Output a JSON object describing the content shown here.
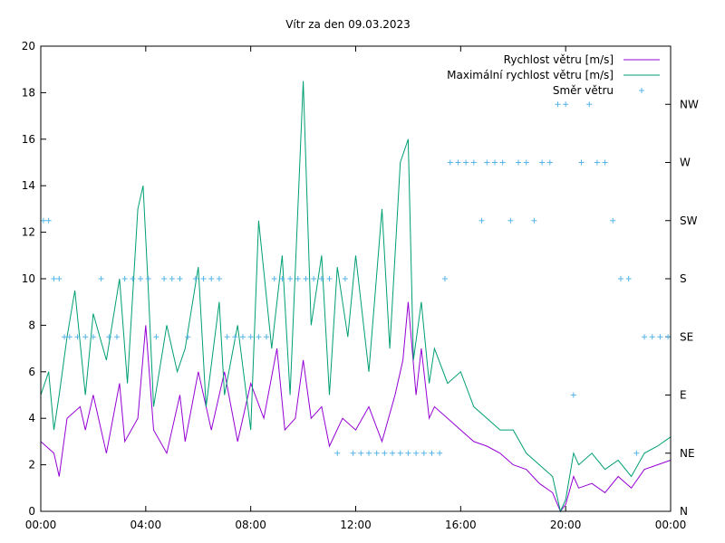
{
  "chart_data": {
    "type": "line",
    "title": "Vítr za den 09.03.2023",
    "xlabel": "",
    "ylabel": "",
    "x_range_hours": [
      0,
      24
    ],
    "ylim": [
      0,
      20
    ],
    "x_tick_labels": [
      "00:00",
      "04:00",
      "08:00",
      "12:00",
      "16:00",
      "20:00",
      "00:00"
    ],
    "y_tick_labels": [
      "0",
      "2",
      "4",
      "6",
      "8",
      "10",
      "12",
      "14",
      "16",
      "18",
      "20"
    ],
    "y2_tick_labels": [
      "N",
      "NE",
      "E",
      "SE",
      "S",
      "SW",
      "W",
      "NW"
    ],
    "legend_position": "top-right",
    "colors": {
      "speed": "#9400d3",
      "gust": "#009e73",
      "direction": "#56b4e9"
    },
    "series": [
      {
        "name": "Rychlost větru [m/s]",
        "x": [
          0.0,
          0.5,
          0.7,
          1.0,
          1.5,
          1.7,
          2.0,
          2.5,
          3.0,
          3.2,
          3.7,
          4.0,
          4.3,
          4.8,
          5.3,
          5.5,
          6.0,
          6.5,
          7.0,
          7.5,
          8.0,
          8.5,
          9.0,
          9.3,
          9.7,
          10.0,
          10.3,
          10.7,
          11.0,
          11.5,
          12.0,
          12.5,
          13.0,
          13.5,
          13.8,
          14.0,
          14.3,
          14.5,
          14.8,
          15.0,
          15.5,
          16.0,
          16.5,
          17.0,
          17.5,
          18.0,
          18.5,
          19.0,
          19.5,
          19.8,
          20.0,
          20.3,
          20.5,
          21.0,
          21.5,
          22.0,
          22.5,
          23.0,
          23.5,
          24.0
        ],
        "values": [
          3.0,
          2.5,
          1.5,
          4.0,
          4.5,
          3.5,
          5.0,
          2.5,
          5.5,
          3.0,
          4.0,
          8.0,
          3.5,
          2.5,
          5.0,
          3.0,
          6.0,
          3.5,
          6.0,
          3.0,
          5.5,
          4.0,
          7.0,
          3.5,
          4.0,
          6.5,
          4.0,
          4.5,
          2.8,
          4.0,
          3.5,
          4.5,
          3.0,
          5.0,
          6.5,
          9.0,
          5.0,
          7.0,
          4.0,
          4.5,
          4.0,
          3.5,
          3.0,
          2.8,
          2.5,
          2.0,
          1.8,
          1.2,
          0.8,
          0.0,
          0.3,
          1.5,
          1.0,
          1.2,
          0.8,
          1.5,
          1.0,
          1.8,
          2.0,
          2.2
        ]
      },
      {
        "name": "Maximální rychlost větru [m/s]",
        "x": [
          0.0,
          0.3,
          0.5,
          0.7,
          1.0,
          1.3,
          1.7,
          2.0,
          2.5,
          3.0,
          3.3,
          3.7,
          3.9,
          4.1,
          4.3,
          4.8,
          5.2,
          5.5,
          6.0,
          6.3,
          6.8,
          7.0,
          7.5,
          8.0,
          8.3,
          8.8,
          9.2,
          9.5,
          10.0,
          10.3,
          10.7,
          11.0,
          11.3,
          11.7,
          12.0,
          12.5,
          13.0,
          13.3,
          13.7,
          14.0,
          14.2,
          14.5,
          14.8,
          15.0,
          15.5,
          16.0,
          16.5,
          17.0,
          17.5,
          18.0,
          18.5,
          19.0,
          19.5,
          19.8,
          20.0,
          20.3,
          20.5,
          21.0,
          21.5,
          22.0,
          22.5,
          23.0,
          23.5,
          24.0
        ],
        "values": [
          5.0,
          6.0,
          3.5,
          5.0,
          7.5,
          9.5,
          5.0,
          8.5,
          6.5,
          10.0,
          5.5,
          13.0,
          14.0,
          9.5,
          4.5,
          8.0,
          6.0,
          7.0,
          10.5,
          4.5,
          9.0,
          5.0,
          8.0,
          3.5,
          12.5,
          7.0,
          11.0,
          5.0,
          18.5,
          8.0,
          11.0,
          5.0,
          10.5,
          7.5,
          11.0,
          6.0,
          13.0,
          7.0,
          15.0,
          16.0,
          6.5,
          9.0,
          5.5,
          7.0,
          5.5,
          6.0,
          4.5,
          4.0,
          3.5,
          3.5,
          2.5,
          2.0,
          1.5,
          0.0,
          0.5,
          2.5,
          2.0,
          2.5,
          1.8,
          2.2,
          1.5,
          2.5,
          2.8,
          3.2
        ]
      },
      {
        "name": "Směr větru",
        "x": [
          0.1,
          0.3,
          0.5,
          0.7,
          0.9,
          1.1,
          1.4,
          1.7,
          2.0,
          2.3,
          2.6,
          2.9,
          3.2,
          3.5,
          3.8,
          4.1,
          4.4,
          4.7,
          5.0,
          5.3,
          5.6,
          5.9,
          6.2,
          6.5,
          6.8,
          7.1,
          7.4,
          7.7,
          8.0,
          8.3,
          8.6,
          8.9,
          9.2,
          9.5,
          9.8,
          10.1,
          10.4,
          10.7,
          11.0,
          11.3,
          11.6,
          11.9,
          12.2,
          12.5,
          12.8,
          13.1,
          13.4,
          13.7,
          14.0,
          14.3,
          14.6,
          14.9,
          15.2,
          15.4,
          15.6,
          15.9,
          16.2,
          16.5,
          16.8,
          17.0,
          17.3,
          17.6,
          17.9,
          18.2,
          18.5,
          18.8,
          19.1,
          19.4,
          19.7,
          20.0,
          20.3,
          20.6,
          20.9,
          21.2,
          21.5,
          21.8,
          22.1,
          22.4,
          22.7,
          23.0,
          23.3,
          23.6,
          23.9
        ],
        "values": [
          5,
          5,
          4,
          4,
          3,
          3,
          3,
          3,
          3,
          4,
          3,
          3,
          4,
          4,
          4,
          4,
          3,
          4,
          4,
          4,
          3,
          4,
          4,
          4,
          4,
          3,
          3,
          3,
          3,
          3,
          3,
          4,
          4,
          4,
          4,
          4,
          4,
          4,
          4,
          1,
          4,
          1,
          1,
          1,
          1,
          1,
          1,
          1,
          1,
          1,
          1,
          1,
          1,
          4,
          6,
          6,
          6,
          6,
          5,
          6,
          6,
          6,
          5,
          6,
          6,
          5,
          6,
          6,
          7,
          7,
          2,
          6,
          7,
          6,
          6,
          5,
          4,
          4,
          1,
          3,
          3,
          3,
          3
        ]
      }
    ]
  }
}
